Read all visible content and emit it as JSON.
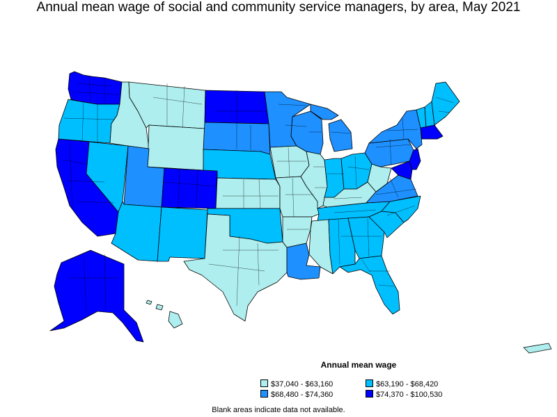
{
  "title": "Annual mean wage of social and community service managers, by area, May 2021",
  "legend": {
    "title": "Annual mean wage",
    "items": [
      {
        "label": "$37,040 - $63,160",
        "color": "#aeeeee"
      },
      {
        "label": "$63,190 - $68,420",
        "color": "#00bfff"
      },
      {
        "label": "$68,480 - $74,360",
        "color": "#1e90ff"
      },
      {
        "label": "$74,370 - $100,530",
        "color": "#0000ff"
      }
    ]
  },
  "note": "Blank areas indicate data not available.",
  "colors": {
    "border": "#000000",
    "blank": "#ffffff"
  },
  "states": [
    {
      "name": "WA",
      "class": 3
    },
    {
      "name": "OR",
      "class": 1
    },
    {
      "name": "CA",
      "class": 3
    },
    {
      "name": "NV",
      "class": 1
    },
    {
      "name": "ID",
      "class": 0
    },
    {
      "name": "MT",
      "class": 0
    },
    {
      "name": "WY",
      "class": 0
    },
    {
      "name": "UT",
      "class": 2
    },
    {
      "name": "AZ",
      "class": 1
    },
    {
      "name": "CO",
      "class": 3
    },
    {
      "name": "NM",
      "class": 1
    },
    {
      "name": "ND",
      "class": 3
    },
    {
      "name": "SD",
      "class": 2
    },
    {
      "name": "NE",
      "class": 1
    },
    {
      "name": "KS",
      "class": 0
    },
    {
      "name": "OK",
      "class": 1
    },
    {
      "name": "TX",
      "class": 0
    },
    {
      "name": "MN",
      "class": 2
    },
    {
      "name": "IA",
      "class": 0
    },
    {
      "name": "MO",
      "class": 0
    },
    {
      "name": "AR",
      "class": 0
    },
    {
      "name": "LA",
      "class": 2
    },
    {
      "name": "WI",
      "class": 2
    },
    {
      "name": "IL",
      "class": 0
    },
    {
      "name": "MI",
      "class": 2
    },
    {
      "name": "IN",
      "class": 1
    },
    {
      "name": "OH",
      "class": 1
    },
    {
      "name": "KY",
      "class": 0
    },
    {
      "name": "TN",
      "class": 1
    },
    {
      "name": "MS",
      "class": 0
    },
    {
      "name": "AL",
      "class": 1
    },
    {
      "name": "GA",
      "class": 1
    },
    {
      "name": "FL",
      "class": 1
    },
    {
      "name": "SC",
      "class": 1
    },
    {
      "name": "NC",
      "class": 1
    },
    {
      "name": "VA",
      "class": 2
    },
    {
      "name": "WV",
      "class": 0
    },
    {
      "name": "PA",
      "class": 2
    },
    {
      "name": "NY",
      "class": 2
    },
    {
      "name": "VT",
      "class": 1
    },
    {
      "name": "NH",
      "class": 1
    },
    {
      "name": "ME",
      "class": 1
    },
    {
      "name": "MA",
      "class": 3
    },
    {
      "name": "NJ",
      "class": 3
    },
    {
      "name": "MD",
      "class": 3
    },
    {
      "name": "AK",
      "class": 3
    },
    {
      "name": "HI",
      "class": 0
    },
    {
      "name": "PR",
      "class": 0
    }
  ]
}
